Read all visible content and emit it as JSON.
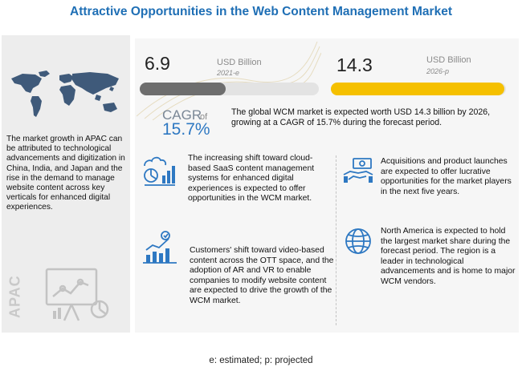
{
  "title": "Attractive Opportunities in the Web Content Management Market",
  "left_panel": {
    "text": "The market growth in APAC can be attributed to technological advancements and digitization in China, India, and Japan and the rise in the demand to manage website content across key verticals for enhanced digital experiences.",
    "region_label": "APAC",
    "map_icon": "world-map-icon",
    "chart_icon": "presentation-chart-icon"
  },
  "market_size": {
    "start": {
      "value": "6.9",
      "unit": "USD Billion",
      "year": "2021-e",
      "fill_fraction": 0.48,
      "color": "#6e6e6e"
    },
    "end": {
      "value": "14.3",
      "unit": "USD  Billion",
      "year": "2026-p",
      "fill_fraction": 0.99,
      "color": "#f5c000"
    }
  },
  "cagr": {
    "label": "CAGR",
    "of": "of",
    "value": "15.7%",
    "text": "The global WCM market is expected worth USD 14.3 billion by 2026, growing at a CAGR of 15.7% during the forecast period."
  },
  "highlights": [
    {
      "icon": "cloud-analytics-icon",
      "text": "The increasing shift toward cloud-based SaaS content management systems for enhanced digital experiences is expected to offer opportunities in the WCM market."
    },
    {
      "icon": "growth-chart-icon",
      "text": "Customers' shift toward video-based content across the OTT space, and the adoption of AR and VR to enable companies to modify website content are expected to drive the growth of the WCM market."
    },
    {
      "icon": "handshake-money-icon",
      "text": "Acquisitions and product launches are expected to offer lucrative opportunities for the market players in the next five years."
    },
    {
      "icon": "globe-icon",
      "text": "North America is expected to hold the largest market share during the forecast period. The region is a leader in technological advancements and is home to major WCM vendors."
    }
  ],
  "footnote": "e: estimated; p: projected",
  "colors": {
    "title": "#1f6fb5",
    "accent_blue": "#2e78c2",
    "yellow": "#f5c000",
    "gray": "#6e6e6e"
  }
}
